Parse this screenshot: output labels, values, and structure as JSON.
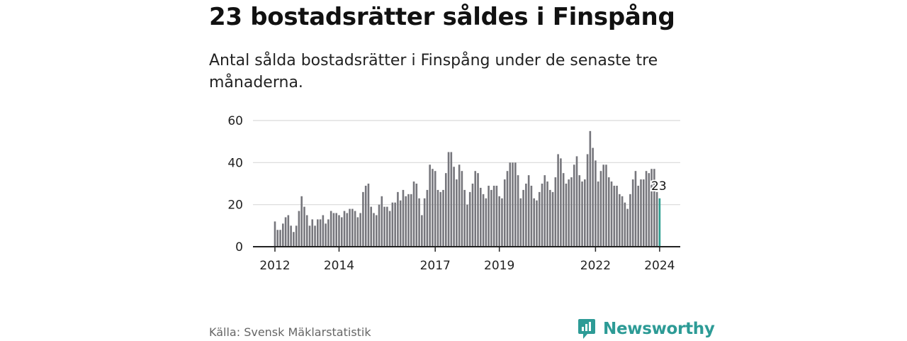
{
  "title": "23 bostadsrätter såldes i Finspång",
  "subtitle": "Antal sålda bostadsrätter i Finspång under de senaste tre månaderna.",
  "source": "Källa: Svensk Mäklarstatistik",
  "brand": "Newsworthy",
  "colors": {
    "bar": "#76767c",
    "highlight": "#2a9d8f",
    "grid": "#d9d9d9",
    "axis": "#222222",
    "brand": "#2d9b96"
  },
  "chart_data": {
    "type": "bar",
    "title": "Antal sålda bostadsrätter i Finspång",
    "xlabel": "",
    "ylabel": "",
    "ylim": [
      0,
      60
    ],
    "yticks": [
      0,
      20,
      40,
      60
    ],
    "x_start": "2012-01",
    "xticks": [
      {
        "label": "2012",
        "month_index": 0
      },
      {
        "label": "2014",
        "month_index": 24
      },
      {
        "label": "2017",
        "month_index": 60
      },
      {
        "label": "2019",
        "month_index": 84
      },
      {
        "label": "2022",
        "month_index": 120
      },
      {
        "label": "2024",
        "month_index": 144
      }
    ],
    "end_label": "23",
    "values": [
      12,
      8,
      8,
      11,
      14,
      15,
      10,
      7,
      10,
      17,
      24,
      19,
      15,
      10,
      13,
      10,
      13,
      13,
      15,
      11,
      13,
      17,
      16,
      16,
      15,
      14,
      17,
      16,
      18,
      18,
      17,
      14,
      16,
      26,
      29,
      30,
      19,
      16,
      15,
      20,
      24,
      19,
      19,
      17,
      21,
      21,
      26,
      22,
      27,
      24,
      25,
      25,
      31,
      30,
      23,
      15,
      23,
      27,
      39,
      37,
      36,
      27,
      26,
      27,
      35,
      45,
      45,
      38,
      32,
      39,
      36,
      27,
      20,
      26,
      30,
      36,
      35,
      28,
      25,
      23,
      29,
      27,
      29,
      29,
      24,
      23,
      32,
      36,
      40,
      40,
      40,
      34,
      23,
      27,
      30,
      34,
      29,
      23,
      22,
      26,
      30,
      34,
      31,
      27,
      26,
      33,
      44,
      42,
      35,
      30,
      32,
      33,
      39,
      43,
      34,
      31,
      32,
      44,
      55,
      47,
      41,
      31,
      36,
      39,
      39,
      33,
      31,
      29,
      29,
      25,
      24,
      21,
      18,
      25,
      32,
      36,
      29,
      32,
      32,
      36,
      35,
      37,
      37,
      26,
      23
    ]
  }
}
